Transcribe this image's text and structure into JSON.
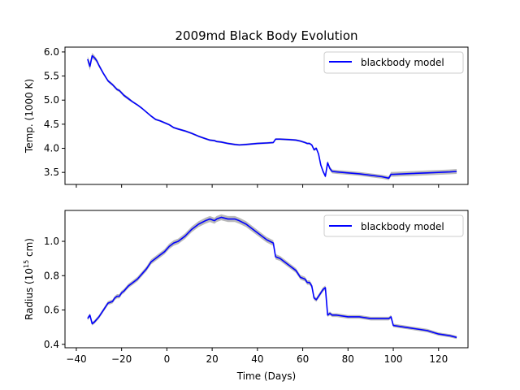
{
  "chart_data": [
    {
      "type": "line",
      "title": "2009md Black Body Evolution",
      "xlabel": "",
      "ylabel": "Temp. (1000 K)",
      "xlim": [
        -45,
        133
      ],
      "ylim": [
        3.25,
        6.1
      ],
      "xticks": [
        -40,
        -20,
        0,
        20,
        40,
        60,
        80,
        100,
        120
      ],
      "xtick_labels_visible": false,
      "yticks": [
        3.5,
        4.0,
        4.5,
        5.0,
        5.5,
        6.0
      ],
      "ytick_labels": [
        "3.5",
        "4.0",
        "4.5",
        "5.0",
        "5.5",
        "6.0"
      ],
      "grid": false,
      "legend": {
        "entries": [
          "blackbody model"
        ],
        "location": "upper right"
      },
      "series": [
        {
          "name": "blackbody model",
          "color": "#0000ff",
          "band_color": "#7f7f7f",
          "x": [
            -35,
            -34,
            -33,
            -32,
            -31,
            -30,
            -28,
            -26,
            -24,
            -22,
            -21,
            -20,
            -19,
            -17,
            -15,
            -13,
            -11,
            -9,
            -7,
            -5,
            -3,
            -1,
            1,
            3,
            5,
            8,
            11,
            14,
            17,
            19,
            21,
            22,
            24,
            27,
            30,
            32,
            35,
            40,
            44,
            47,
            48,
            50,
            54,
            57,
            59,
            61,
            62,
            63,
            64,
            65,
            66,
            67,
            68,
            69,
            70,
            71,
            72,
            73,
            75,
            80,
            85,
            90,
            95,
            98,
            99,
            100,
            105,
            110,
            115,
            120,
            125,
            128
          ],
          "y": [
            5.85,
            5.7,
            5.92,
            5.88,
            5.82,
            5.72,
            5.55,
            5.4,
            5.32,
            5.22,
            5.2,
            5.15,
            5.1,
            5.03,
            4.96,
            4.9,
            4.83,
            4.75,
            4.67,
            4.6,
            4.57,
            4.53,
            4.49,
            4.43,
            4.4,
            4.36,
            4.31,
            4.25,
            4.2,
            4.17,
            4.16,
            4.14,
            4.13,
            4.1,
            4.08,
            4.07,
            4.08,
            4.1,
            4.11,
            4.12,
            4.19,
            4.19,
            4.18,
            4.17,
            4.15,
            4.12,
            4.1,
            4.1,
            4.07,
            3.97,
            4.0,
            3.88,
            3.65,
            3.52,
            3.42,
            3.7,
            3.58,
            3.52,
            3.51,
            3.49,
            3.47,
            3.44,
            3.41,
            3.38,
            3.46,
            3.46,
            3.47,
            3.48,
            3.49,
            3.5,
            3.51,
            3.52
          ],
          "err": [
            0.06,
            0.08,
            0.06,
            0.05,
            0.04,
            0.04,
            0.03,
            0.03,
            0.03,
            0.03,
            0.03,
            0.03,
            0.03,
            0.03,
            0.02,
            0.02,
            0.02,
            0.02,
            0.02,
            0.02,
            0.02,
            0.02,
            0.02,
            0.02,
            0.02,
            0.02,
            0.02,
            0.02,
            0.02,
            0.02,
            0.02,
            0.02,
            0.02,
            0.02,
            0.02,
            0.02,
            0.02,
            0.02,
            0.02,
            0.02,
            0.02,
            0.02,
            0.02,
            0.02,
            0.02,
            0.02,
            0.02,
            0.02,
            0.02,
            0.03,
            0.03,
            0.03,
            0.03,
            0.03,
            0.03,
            0.04,
            0.04,
            0.04,
            0.04,
            0.04,
            0.04,
            0.04,
            0.04,
            0.04,
            0.05,
            0.05,
            0.05,
            0.05,
            0.05,
            0.05,
            0.05,
            0.05
          ]
        }
      ]
    },
    {
      "type": "line",
      "title": "",
      "xlabel": "Time (Days)",
      "ylabel": "Radius (10<sup>15</sup> cm)",
      "ylabel_parts": [
        "Radius (10",
        "15",
        " cm)"
      ],
      "xlim": [
        -45,
        133
      ],
      "ylim": [
        0.38,
        1.18
      ],
      "xticks": [
        -40,
        -20,
        0,
        20,
        40,
        60,
        80,
        100,
        120
      ],
      "xtick_labels": [
        "−40",
        "−20",
        "0",
        "20",
        "40",
        "60",
        "80",
        "100",
        "120"
      ],
      "yticks": [
        0.4,
        0.6,
        0.8,
        1.0
      ],
      "ytick_labels": [
        "0.4",
        "0.6",
        "0.8",
        "1.0"
      ],
      "grid": false,
      "legend": {
        "entries": [
          "blackbody model"
        ],
        "location": "upper right"
      },
      "series": [
        {
          "name": "blackbody model",
          "color": "#0000ff",
          "band_color": "#7f7f7f",
          "x": [
            -35,
            -34,
            -33,
            -32,
            -30,
            -28,
            -26,
            -24,
            -23,
            -22,
            -21,
            -20,
            -19,
            -17,
            -15,
            -13,
            -11,
            -9,
            -7,
            -5,
            -3,
            -1,
            1,
            3,
            5,
            8,
            11,
            14,
            17,
            19,
            21,
            22,
            24,
            27,
            30,
            32,
            35,
            40,
            44,
            47,
            48,
            50,
            54,
            57,
            59,
            61,
            62,
            63,
            64,
            65,
            66,
            67,
            68,
            69,
            70,
            71,
            72,
            73,
            75,
            80,
            85,
            90,
            95,
            98,
            99,
            100,
            105,
            110,
            115,
            120,
            125,
            128
          ],
          "y": [
            0.55,
            0.57,
            0.52,
            0.53,
            0.56,
            0.6,
            0.64,
            0.65,
            0.67,
            0.68,
            0.68,
            0.7,
            0.71,
            0.74,
            0.76,
            0.78,
            0.81,
            0.84,
            0.88,
            0.9,
            0.92,
            0.94,
            0.97,
            0.99,
            1.0,
            1.03,
            1.07,
            1.1,
            1.12,
            1.13,
            1.12,
            1.13,
            1.14,
            1.13,
            1.13,
            1.12,
            1.1,
            1.05,
            1.01,
            0.99,
            0.91,
            0.9,
            0.86,
            0.83,
            0.79,
            0.78,
            0.76,
            0.76,
            0.74,
            0.67,
            0.66,
            0.68,
            0.7,
            0.72,
            0.73,
            0.57,
            0.58,
            0.57,
            0.57,
            0.56,
            0.56,
            0.55,
            0.55,
            0.55,
            0.56,
            0.51,
            0.5,
            0.49,
            0.48,
            0.46,
            0.45,
            0.44
          ]
        }
      ]
    }
  ]
}
